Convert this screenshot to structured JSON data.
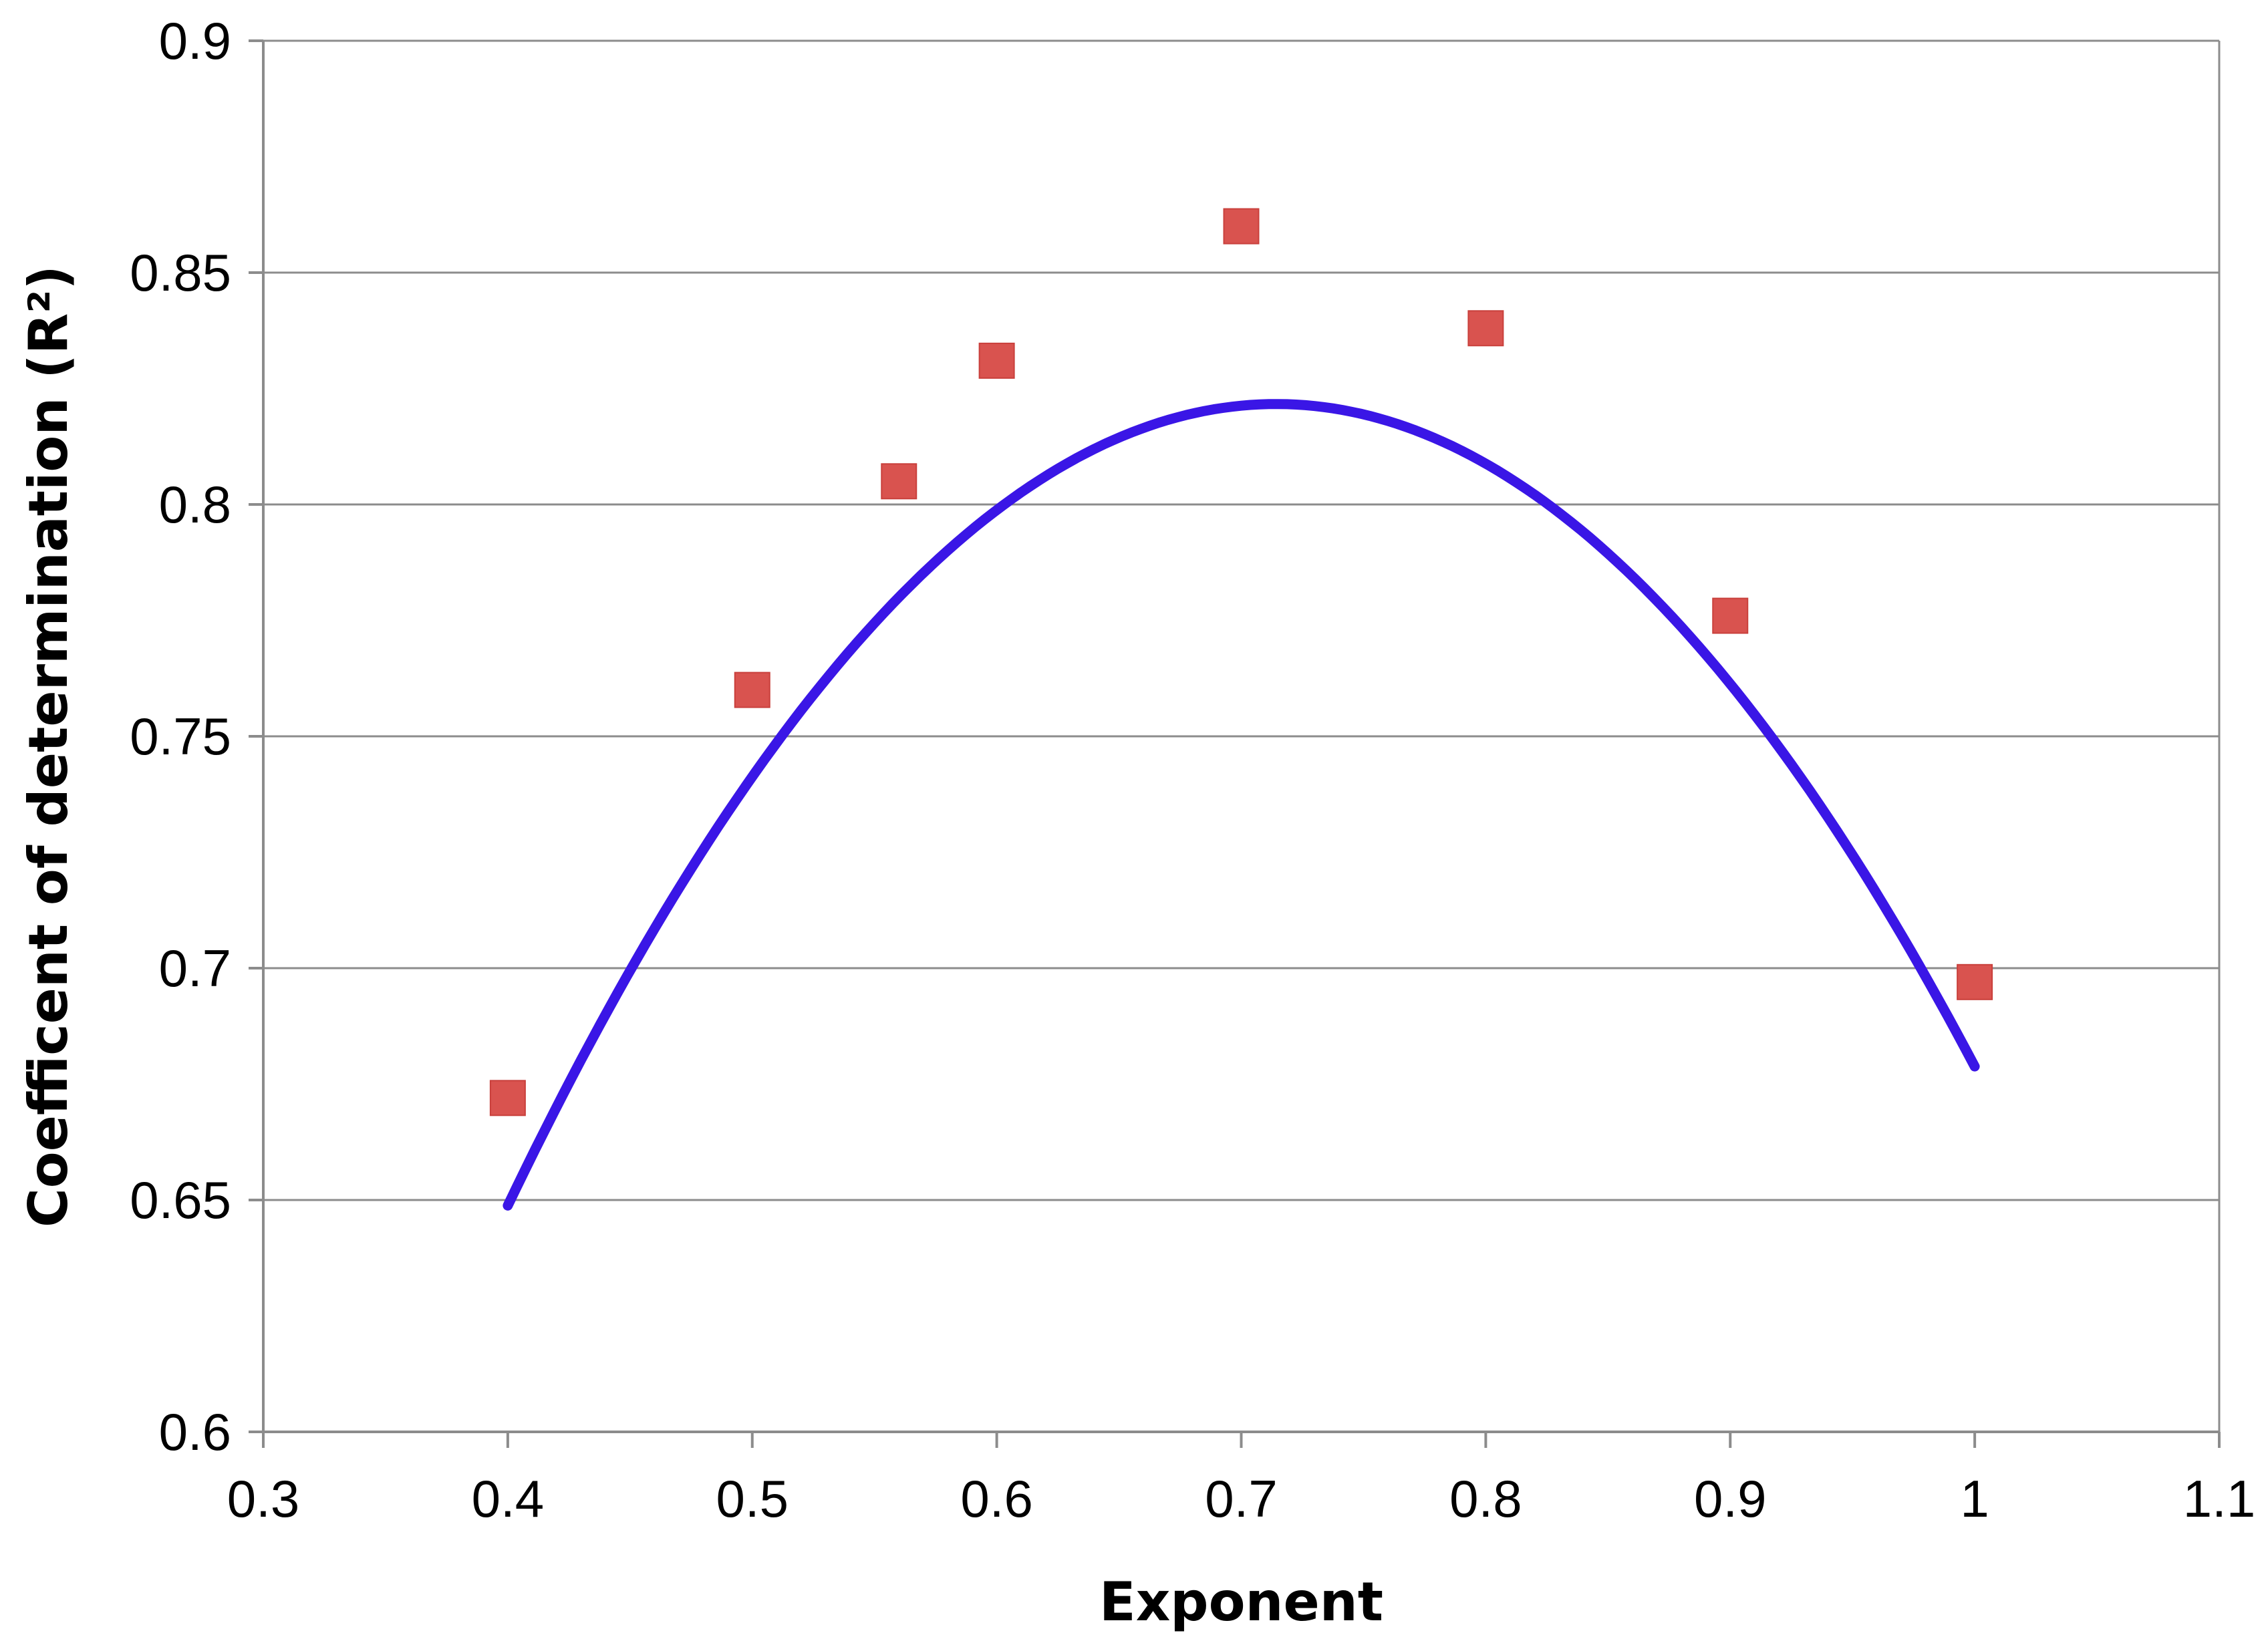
{
  "chart_data": {
    "type": "scatter",
    "title": "",
    "xlabel": "Exponent",
    "ylabel": "Coefficent  of determination (R²)",
    "xlim": [
      0.3,
      1.1
    ],
    "ylim": [
      0.6,
      0.9
    ],
    "xticks": [
      0.3,
      0.4,
      0.5,
      0.6,
      0.7,
      0.8,
      0.9,
      1.0,
      1.1
    ],
    "xtick_labels": [
      "0.3",
      "0.4",
      "0.5",
      "0.6",
      "0.7",
      "0.8",
      "0.9",
      "1",
      "1.1"
    ],
    "yticks": [
      0.6,
      0.65,
      0.7,
      0.75,
      0.8,
      0.85,
      0.9
    ],
    "ytick_labels": [
      "0.6",
      "0.65",
      "0.7",
      "0.75",
      "0.8",
      "0.85",
      "0.9"
    ],
    "grid": "horizontal",
    "legend": "none",
    "series": [
      {
        "kind": "scatter",
        "marker": "square",
        "color": "#d9534f",
        "points": [
          {
            "x": 0.4,
            "y": 0.672
          },
          {
            "x": 0.5,
            "y": 0.76
          },
          {
            "x": 0.56,
            "y": 0.805
          },
          {
            "x": 0.6,
            "y": 0.831
          },
          {
            "x": 0.7,
            "y": 0.86
          },
          {
            "x": 0.8,
            "y": 0.838
          },
          {
            "x": 0.9,
            "y": 0.776
          },
          {
            "x": 1.0,
            "y": 0.697
          }
        ]
      },
      {
        "kind": "line",
        "style": "polynomial trendline",
        "color": "#3a16e6",
        "x_range": [
          0.4,
          1.0
        ],
        "coefficients": [
          -0.0712,
          2.5,
          -1.75
        ]
      }
    ]
  }
}
